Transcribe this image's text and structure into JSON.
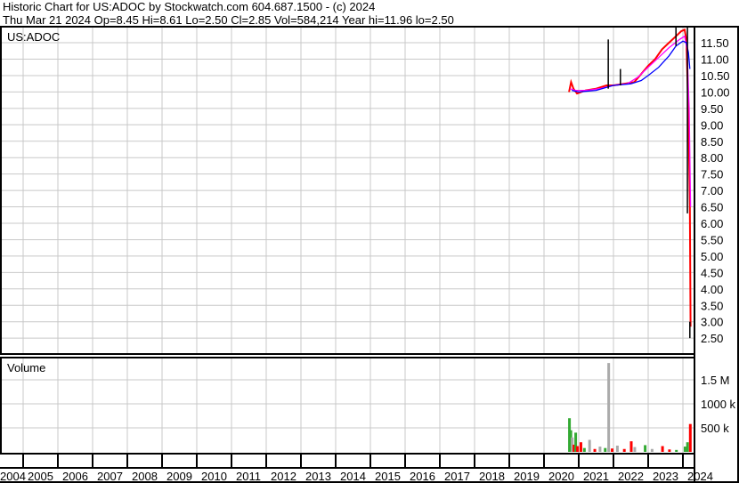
{
  "header": {
    "line1": "Historic Chart for US:ADOC by Stockwatch.com 604.687.1500 - (c) 2024",
    "line2": "Thu Mar 21 2024   Op=8.45   Hi=8.61   Lo=2.50   Cl=2.85   Vol=584,214   Year hi=11.96   lo=2.50"
  },
  "chart_data": [
    {
      "type": "line",
      "title": "US:ADOC",
      "x_ticks": [
        "2004",
        "2005",
        "2006",
        "2007",
        "2008",
        "2009",
        "2010",
        "2011",
        "2012",
        "2013",
        "2014",
        "2015",
        "2016",
        "2017",
        "2018",
        "2019",
        "2020",
        "2021",
        "2022",
        "2023",
        "2024"
      ],
      "y_ticks": [
        "2.50",
        "3.00",
        "3.50",
        "4.00",
        "4.50",
        "5.00",
        "5.50",
        "6.00",
        "6.50",
        "7.00",
        "7.50",
        "8.00",
        "8.50",
        "9.00",
        "9.50",
        "10.00",
        "10.50",
        "11.00",
        "11.50"
      ],
      "ylim": [
        2.5,
        12.0
      ],
      "grid": true,
      "series": [
        {
          "color": "#ff0000",
          "x": [
            2020.72,
            2020.78,
            2020.85,
            2020.95,
            2021.2,
            2021.5,
            2021.8,
            2022.0,
            2022.3,
            2022.6,
            2022.8,
            2023.0,
            2023.2,
            2023.4,
            2023.6,
            2023.8,
            2023.95,
            2024.05,
            2024.1,
            2024.14,
            2024.18,
            2024.2,
            2024.22
          ],
          "y": [
            10.0,
            10.3,
            10.1,
            9.95,
            10.05,
            10.1,
            10.2,
            10.2,
            10.25,
            10.3,
            10.55,
            10.8,
            11.0,
            11.3,
            11.5,
            11.7,
            11.85,
            11.9,
            11.6,
            10.0,
            8.0,
            6.5,
            2.85
          ]
        },
        {
          "color": "#ff00ff",
          "x": [
            2020.75,
            2020.9,
            2021.2,
            2021.6,
            2022.0,
            2022.4,
            2022.7,
            2023.0,
            2023.3,
            2023.6,
            2023.9,
            2024.05,
            2024.12,
            2024.18,
            2024.22
          ],
          "y": [
            10.1,
            10.05,
            10.05,
            10.1,
            10.2,
            10.25,
            10.45,
            10.75,
            11.05,
            11.35,
            11.6,
            11.7,
            11.3,
            9.5,
            6.5
          ]
        },
        {
          "color": "#0000ff",
          "x": [
            2020.8,
            2021.0,
            2021.5,
            2022.0,
            2022.5,
            2022.8,
            2023.0,
            2023.3,
            2023.6,
            2023.8,
            2024.0,
            2024.1,
            2024.16,
            2024.2
          ],
          "y": [
            10.05,
            10.0,
            10.05,
            10.2,
            10.25,
            10.35,
            10.5,
            10.75,
            11.1,
            11.4,
            11.55,
            11.5,
            11.2,
            10.7
          ]
        }
      ]
    },
    {
      "type": "bar",
      "title": "Volume",
      "y_ticks": [
        "500 k",
        "1000 k",
        "1.5 M"
      ],
      "ylim": [
        0,
        2000000
      ],
      "x": [
        2020.72,
        2020.76,
        2020.8,
        2020.85,
        2020.9,
        2020.95,
        2021.05,
        2021.15,
        2021.3,
        2021.45,
        2021.6,
        2021.75,
        2021.85,
        2021.95,
        2022.1,
        2022.3,
        2022.5,
        2022.6,
        2022.9,
        2023.1,
        2023.4,
        2023.6,
        2023.8,
        2024.05,
        2024.12,
        2024.2
      ],
      "values": [
        700000,
        450000,
        300000,
        150000,
        400000,
        120000,
        200000,
        80000,
        250000,
        60000,
        110000,
        80000,
        1850000,
        70000,
        130000,
        60000,
        220000,
        100000,
        140000,
        60000,
        120000,
        50000,
        40000,
        110000,
        200000,
        580000
      ],
      "colors": [
        "#33aa33",
        "#33aa33",
        "#aaaaaa",
        "#ff0000",
        "#33aa33",
        "#ff0000",
        "#ff0000",
        "#33aa33",
        "#aaaaaa",
        "#ff0000",
        "#aaaaaa",
        "#33aa33",
        "#aaaaaa",
        "#ff0000",
        "#aaaaaa",
        "#ff0000",
        "#ff0000",
        "#aaaaaa",
        "#33aa33",
        "#aaaaaa",
        "#ff0000",
        "#ff0000",
        "#33aa33",
        "#33aa33",
        "#33aa33",
        "#ff0000"
      ]
    }
  ]
}
